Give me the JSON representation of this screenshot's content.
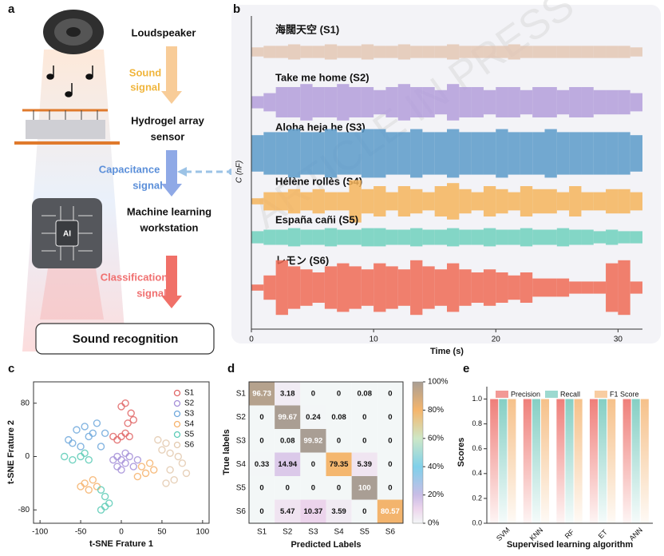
{
  "diagram": {
    "panel": "a",
    "loudspeaker": "Loudspeaker",
    "sound_signal": [
      "Sound",
      "signal"
    ],
    "sensor": [
      "Hydrogel array",
      "sensor"
    ],
    "capacitance_signal": [
      "Capacitance",
      "signal"
    ],
    "workstation": [
      "Machine learning",
      "workstation"
    ],
    "classification_signal": [
      "Classification",
      "signal"
    ],
    "chip": "AI",
    "output": "Sound recognition"
  },
  "watermark": "ARTICLE IN PRESS",
  "chart_data": [
    {
      "type": "waveform",
      "panel": "b",
      "x_label": "Time (s)",
      "y_label": "C (nF)",
      "x": [
        0.5,
        1.5,
        2.5,
        3.5,
        4.5,
        5.5,
        6.5,
        7.5,
        8.5,
        9.5,
        10.5,
        11.5,
        12.5,
        13.5,
        14.5,
        15.5,
        16.5,
        17.5,
        18.5,
        19.5,
        20.5,
        21.5,
        22.5,
        23.5,
        24.5,
        25.5,
        26.5,
        27.5,
        28.5,
        29.5,
        30.5,
        31.5
      ],
      "xlim": [
        0,
        32
      ],
      "xticks": [
        0,
        10,
        20,
        30
      ],
      "series": [
        {
          "name": "海闊天空 (S1)",
          "color": "#e3c7b4",
          "values": [
            0.15,
            0.2,
            0.2,
            0.25,
            0.2,
            0.2,
            0.25,
            0.2,
            0.2,
            0.25,
            0.2,
            0.2,
            0.25,
            0.2,
            0.2,
            0.2,
            0.25,
            0.2,
            0.2,
            0.2,
            0.2,
            0.25,
            0.2,
            0.2,
            0.2,
            0.2,
            0.2,
            0.2,
            0.2,
            0.2,
            0.2,
            0.15
          ]
        },
        {
          "name": "Take me home (S2)",
          "color": "#b39ddb",
          "values": [
            0.2,
            0.3,
            0.5,
            0.5,
            0.6,
            0.5,
            0.5,
            0.6,
            0.5,
            0.5,
            0.4,
            0.5,
            0.6,
            0.5,
            0.5,
            0.4,
            0.6,
            0.5,
            0.5,
            0.4,
            0.5,
            0.5,
            0.4,
            0.5,
            0.5,
            0.4,
            0.5,
            0.5,
            0.4,
            0.4,
            0.4,
            0.3
          ]
        },
        {
          "name": "Aloha heja he (S3)",
          "color": "#5b9ac9",
          "values": [
            0.6,
            0.7,
            0.7,
            0.8,
            0.7,
            0.7,
            0.8,
            0.7,
            0.7,
            0.8,
            0.8,
            0.7,
            0.7,
            0.8,
            0.7,
            0.7,
            0.8,
            0.7,
            0.7,
            0.7,
            0.8,
            0.7,
            0.7,
            0.7,
            0.8,
            0.7,
            0.7,
            0.7,
            0.7,
            0.7,
            0.7,
            0.6
          ]
        },
        {
          "name": "Hélène rollès (S4)",
          "color": "#f5b45c",
          "values": [
            0.1,
            0.3,
            0.3,
            0.4,
            0.3,
            0.4,
            0.3,
            0.3,
            0.7,
            0.4,
            0.5,
            0.3,
            0.5,
            0.4,
            0.3,
            0.5,
            0.6,
            0.4,
            0.3,
            0.5,
            0.4,
            0.3,
            0.5,
            0.4,
            0.4,
            0.3,
            0.5,
            0.3,
            0.3,
            0.4,
            0.4,
            0.3
          ]
        },
        {
          "name": "España cañi (S5)",
          "color": "#6fd0bd",
          "values": [
            0.2,
            0.25,
            0.25,
            0.3,
            0.25,
            0.25,
            0.3,
            0.25,
            0.25,
            0.3,
            0.3,
            0.25,
            0.25,
            0.3,
            0.25,
            0.25,
            0.3,
            0.25,
            0.25,
            0.3,
            0.25,
            0.25,
            0.3,
            0.25,
            0.25,
            0.3,
            0.25,
            0.25,
            0.2,
            0.25,
            0.2,
            0.2
          ]
        },
        {
          "name": "レモン (S6)",
          "color": "#ee6a55",
          "values": [
            0.1,
            0.4,
            0.9,
            0.7,
            0.6,
            0.5,
            0.7,
            0.8,
            0.7,
            0.6,
            0.8,
            0.7,
            0.6,
            0.9,
            0.7,
            0.6,
            0.8,
            0.6,
            0.5,
            0.6,
            0.5,
            0.4,
            0.5,
            0.3,
            0.3,
            0.3,
            0.2,
            0.2,
            0.2,
            0.8,
            0.9,
            0.2
          ]
        }
      ]
    },
    {
      "type": "scatter",
      "panel": "c",
      "x_label": "t-SNE Frature 1",
      "y_label": "t-SNE Frature 2",
      "xlim": [
        -108,
        108
      ],
      "ylim": [
        -100,
        112
      ],
      "xticks": [
        -100,
        -50,
        0,
        50,
        100
      ],
      "yticks": [
        -80,
        0,
        80
      ],
      "legend": "upper right",
      "series": [
        {
          "name": "S1",
          "color": "#e06666",
          "x": [
            -5,
            0,
            5,
            10,
            -10,
            8,
            12,
            5,
            0,
            15
          ],
          "y": [
            25,
            30,
            35,
            30,
            30,
            50,
            65,
            80,
            75,
            55
          ]
        },
        {
          "name": "S2",
          "color": "#a58fd8",
          "x": [
            -5,
            0,
            5,
            -10,
            10,
            15,
            -5,
            20,
            5,
            0
          ],
          "y": [
            0,
            -5,
            -10,
            -5,
            0,
            -15,
            -15,
            -5,
            5,
            -20
          ]
        },
        {
          "name": "S3",
          "color": "#6fa8dc",
          "x": [
            -55,
            -45,
            -35,
            -30,
            -40,
            -60,
            -50,
            -20,
            -65,
            -25
          ],
          "y": [
            40,
            45,
            35,
            50,
            30,
            20,
            15,
            35,
            25,
            15
          ]
        },
        {
          "name": "S4",
          "color": "#f6b26b",
          "x": [
            -45,
            -40,
            -30,
            -35,
            25,
            30,
            35,
            20,
            -50,
            40
          ],
          "y": [
            -40,
            -50,
            -45,
            -35,
            -15,
            -25,
            -10,
            -30,
            -45,
            -20
          ]
        },
        {
          "name": "S5",
          "color": "#5ccbb6",
          "x": [
            -70,
            -60,
            -50,
            -40,
            -25,
            -20,
            -15,
            -25,
            -45,
            -20
          ],
          "y": [
            0,
            -5,
            0,
            -5,
            -50,
            -60,
            -70,
            -80,
            5,
            -75
          ]
        },
        {
          "name": "S6",
          "color": "#e3c9ae",
          "x": [
            50,
            60,
            55,
            45,
            60,
            65,
            55,
            70,
            75,
            80
          ],
          "y": [
            10,
            5,
            20,
            25,
            -20,
            -35,
            -40,
            0,
            -10,
            -25
          ]
        }
      ]
    },
    {
      "type": "heatmap",
      "panel": "d",
      "x_label": "Predicted Labels",
      "y_label": "True labels",
      "x_categories": [
        "S1",
        "S2",
        "S3",
        "S4",
        "S5",
        "S6"
      ],
      "y_categories": [
        "S1",
        "S2",
        "S3",
        "S4",
        "S5",
        "S6"
      ],
      "values": [
        [
          96.73,
          3.18,
          0,
          0,
          0.08,
          0
        ],
        [
          0,
          99.67,
          0.24,
          0.08,
          0,
          0
        ],
        [
          0,
          0.08,
          99.92,
          0,
          0,
          0
        ],
        [
          0.33,
          14.94,
          0,
          79.35,
          5.39,
          0
        ],
        [
          0,
          0,
          0,
          0,
          100,
          0
        ],
        [
          0,
          5.47,
          10.37,
          3.59,
          0,
          80.57
        ]
      ],
      "clim": [
        0,
        100
      ],
      "colormap": [
        [
          0,
          "#f3f7f7"
        ],
        [
          10,
          "#edd5ec"
        ],
        [
          20,
          "#c9bde6"
        ],
        [
          40,
          "#7fd0ea"
        ],
        [
          60,
          "#cde7c6"
        ],
        [
          80,
          "#f5b56c"
        ],
        [
          100,
          "#a99e94"
        ]
      ],
      "colorbar_ticks": [
        {
          "value": 0,
          "label": "0%"
        },
        {
          "value": 20,
          "label": "20%"
        },
        {
          "value": 40,
          "label": "40%"
        },
        {
          "value": 60,
          "label": "60%"
        },
        {
          "value": 80,
          "label": "80%"
        },
        {
          "value": 100,
          "label": "100%"
        }
      ]
    },
    {
      "type": "bar",
      "panel": "e",
      "x_label": "Supervised learning algorithm",
      "y_label": "Scores",
      "categories": [
        "SVM",
        "KNN",
        "RF",
        "ET",
        "ANN"
      ],
      "ylim": [
        0,
        1.1
      ],
      "yticks": [
        {
          "value": 0,
          "label": "0.0"
        },
        0.2,
        0.4,
        0.6,
        0.8,
        {
          "value": 1,
          "label": "1.0"
        }
      ],
      "legend": "upper center",
      "series": [
        {
          "name": "Precision",
          "color": "#ef7f7a",
          "values": [
            1,
            1,
            1,
            1,
            1
          ]
        },
        {
          "name": "Recall",
          "color": "#85cfc4",
          "values": [
            1,
            1,
            1,
            1,
            1
          ]
        },
        {
          "name": "F1 Score",
          "color": "#f6c18a",
          "values": [
            1,
            1,
            1,
            1,
            1
          ]
        }
      ]
    }
  ]
}
